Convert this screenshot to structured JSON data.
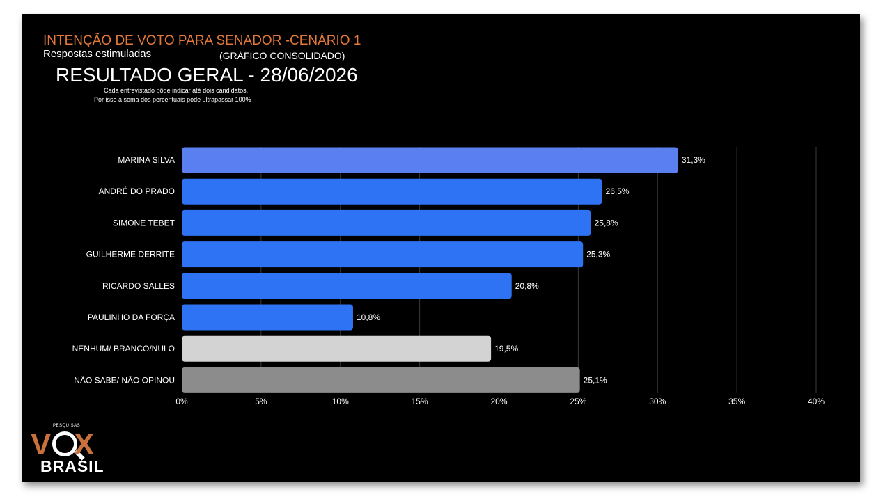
{
  "header": {
    "title": "INTENÇÃO DE VOTO PARA SENADOR  -CENÁRIO 1",
    "subtitle": "Respostas estimuladas",
    "consolidated": "(GRÁFICO CONSOLIDADO)",
    "result_title": "RESULTADO GERAL - 28/06/2026",
    "note_line1": "Cada entrevistado pôde indicar até dois candidatos.",
    "note_line2": "Por isso a soma dos percentuais pode ultrapassar 100%"
  },
  "logo": {
    "small_text": "PESQUISAS",
    "v": "V",
    "x": "X",
    "brasil": "BRASIL"
  },
  "chart_data": {
    "type": "bar",
    "orientation": "horizontal",
    "categories": [
      "MARINA SILVA",
      "ANDRÉ DO PRADO",
      "SIMONE TEBET",
      "GUILHERME DERRITE",
      "RICARDO SALLES",
      "PAULINHO DA FORÇA",
      "NENHUM/ BRANCO/NULO",
      "NÃO SABE/ NÃO OPINOU"
    ],
    "values": [
      31.3,
      26.5,
      25.8,
      25.3,
      20.8,
      10.8,
      19.5,
      25.1
    ],
    "value_labels": [
      "31,3%",
      "26,5%",
      "25,8%",
      "25,3%",
      "20,8%",
      "10,8%",
      "19,5%",
      "25,1%"
    ],
    "colors": [
      "#5a7ff0",
      "#2f73f5",
      "#2f73f5",
      "#2f73f5",
      "#2f73f5",
      "#2f73f5",
      "#d3d3d3",
      "#8c8c8c"
    ],
    "xlim": [
      0,
      40
    ],
    "xticks": [
      0,
      5,
      10,
      15,
      20,
      25,
      30,
      35,
      40
    ],
    "xtick_labels": [
      "0%",
      "5%",
      "10%",
      "15%",
      "20%",
      "25%",
      "30%",
      "35%",
      "40%"
    ],
    "grid": true,
    "title": "INTENÇÃO DE VOTO PARA SENADOR  -CENÁRIO 1",
    "xlabel": "",
    "ylabel": ""
  }
}
